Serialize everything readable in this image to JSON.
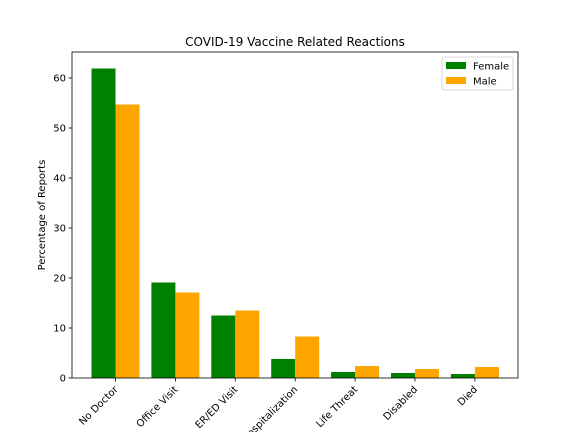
{
  "chart_data": {
    "type": "bar",
    "title": "COVID-19 Vaccine Related Reactions",
    "xlabel": "",
    "ylabel": "Percentage of Reports",
    "categories": [
      "No Doctor",
      "Office Visit",
      "ER/ED Visit",
      "Hospitalization",
      "Life Threat",
      "Disabled",
      "Died"
    ],
    "series": [
      {
        "name": "Female",
        "color": "#008000",
        "values": [
          61.9,
          19.1,
          12.5,
          3.8,
          1.2,
          1.0,
          0.8
        ]
      },
      {
        "name": "Male",
        "color": "#ffa500",
        "values": [
          54.7,
          17.1,
          13.5,
          8.3,
          2.4,
          1.8,
          2.2
        ]
      }
    ],
    "ylim": [
      0,
      65.2
    ],
    "yticks": [
      0,
      10,
      20,
      30,
      40,
      50,
      60
    ],
    "grid": false,
    "legend": "top-right"
  }
}
